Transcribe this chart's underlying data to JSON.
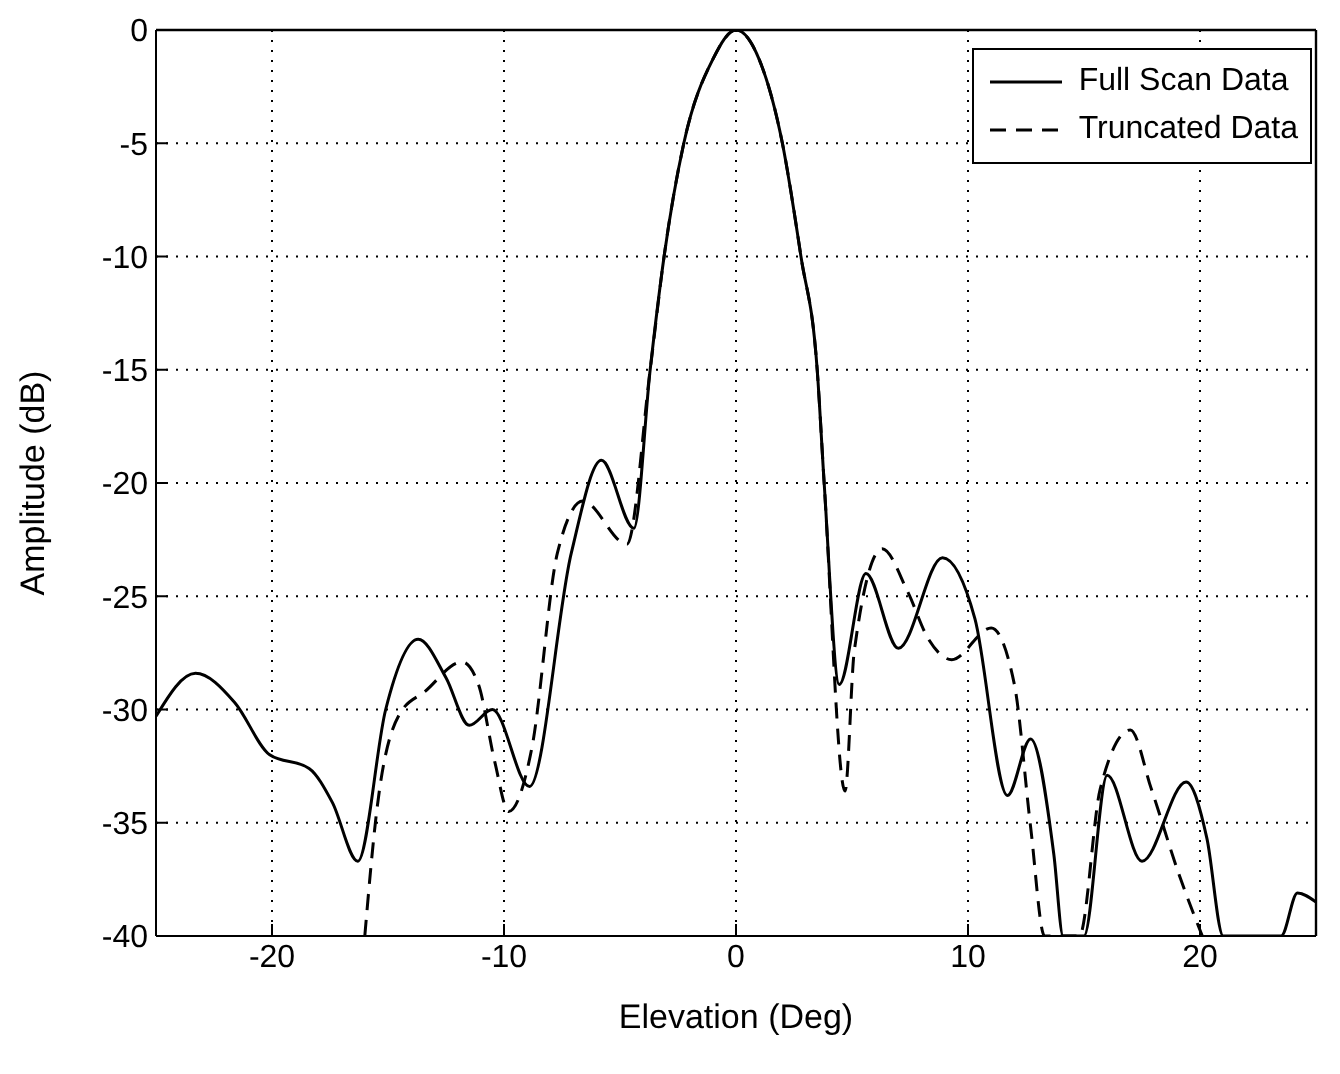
{
  "chart_data": {
    "type": "line",
    "xlabel": "Elevation (Deg)",
    "ylabel": "Amplitude (dB)",
    "xlim": [
      -25,
      25
    ],
    "ylim": [
      -40,
      0
    ],
    "xticks": [
      -20,
      -10,
      0,
      10,
      20
    ],
    "yticks": [
      -40,
      -35,
      -30,
      -25,
      -20,
      -15,
      -10,
      -5,
      0
    ],
    "grid": true,
    "legend": "top right",
    "marker": "none",
    "series": [
      {
        "name": "Full Scan Data",
        "color": "#000000",
        "line_style": "solid",
        "x": [
          -25,
          -23.3,
          -21.6,
          -20.1,
          -18.4,
          -17.4,
          -16.3,
          -15.1,
          -13.7,
          -12.5,
          -11.5,
          -10.5,
          -8.9,
          -7.1,
          -5.8,
          -4.4,
          -3.7,
          -3.1,
          -2.25,
          -1,
          0,
          1,
          2,
          2.8,
          3.5,
          3.8,
          4.45,
          5.6,
          7,
          8.9,
          10.3,
          11.7,
          12.7,
          13.7,
          14.1,
          15,
          16,
          17.5,
          19.4,
          20.3,
          21,
          23.5,
          24.2,
          25
        ],
        "values": [
          -30.3,
          -28.4,
          -29.7,
          -32,
          -32.6,
          -34.1,
          -36.7,
          -30,
          -26.9,
          -28.6,
          -30.7,
          -30,
          -33.4,
          -23.1,
          -19,
          -22,
          -15,
          -10,
          -5,
          -1.3,
          0,
          -1.3,
          -5,
          -10,
          -15,
          -20,
          -28.9,
          -24,
          -27.3,
          -23.3,
          -26,
          -33.8,
          -31.3,
          -36.4,
          -40,
          -40,
          -32.9,
          -36.7,
          -33.2,
          -35.7,
          -40,
          -40,
          -38.1,
          -38.5
        ]
      },
      {
        "name": "Truncated Data",
        "color": "#000000",
        "line_style": "dashed",
        "x": [
          -16,
          -15.5,
          -14.5,
          -13.4,
          -11.8,
          -11.1,
          -10.4,
          -9.8,
          -8.8,
          -7.7,
          -6.6,
          -4.7,
          -3.7,
          -3.1,
          -2.25,
          -1,
          0,
          1,
          2,
          2.8,
          3.5,
          3.8,
          4.7,
          5.1,
          6.3,
          7.4,
          8.3,
          9.3,
          11,
          12,
          12.7,
          13.3,
          14.8,
          15.7,
          17,
          17.9,
          19.1,
          20.1
        ],
        "values": [
          -40,
          -34.6,
          -30.2,
          -29.2,
          -27.9,
          -28.9,
          -32.3,
          -34.5,
          -31.7,
          -23.1,
          -20.8,
          -22.7,
          -15,
          -10,
          -5,
          -1.3,
          0,
          -1.3,
          -5,
          -10,
          -15,
          -20,
          -33.6,
          -27.4,
          -22.9,
          -24.8,
          -26.9,
          -27.8,
          -26.4,
          -28.9,
          -35.2,
          -40,
          -40,
          -33.5,
          -30.9,
          -33.5,
          -37.3,
          -40
        ]
      }
    ]
  }
}
